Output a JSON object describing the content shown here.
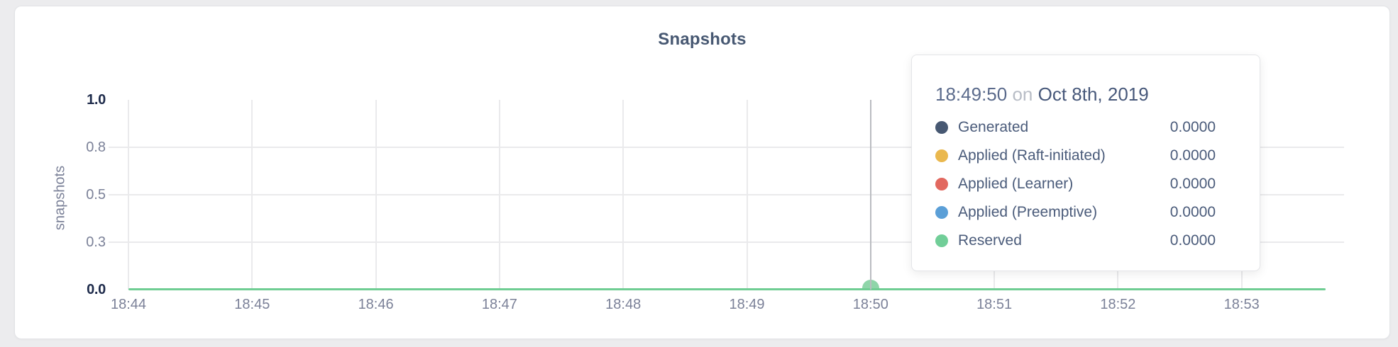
{
  "page": {
    "background": "#ececee"
  },
  "card": {
    "title": "Snapshots"
  },
  "colors": {
    "title": "#475872",
    "axis_text": "#7b8198",
    "axis_text_emphasis": "#1d2a4a",
    "gridline": "#eaeaec",
    "crosshair": "#babcc1",
    "line": "#6fcd93",
    "hover_dot": "#85d1a2"
  },
  "chart_data": {
    "type": "line",
    "title": "Snapshots",
    "xlabel": "",
    "ylabel": "snapshots",
    "ylim": [
      0,
      1
    ],
    "xlim": [
      "18:44:00",
      "18:53:45"
    ],
    "grid": true,
    "legend_position": "tooltip-only",
    "x_ticks": [
      "18:44",
      "18:45",
      "18:46",
      "18:47",
      "18:48",
      "18:49",
      "18:50",
      "18:51",
      "18:52",
      "18:53"
    ],
    "y_ticks": [
      {
        "label": "0.0",
        "value": 0.0
      },
      {
        "label": "0.3",
        "value": 0.25
      },
      {
        "label": "0.5",
        "value": 0.5
      },
      {
        "label": "0.8",
        "value": 0.75
      },
      {
        "label": "1.0",
        "value": 1.0
      }
    ],
    "series": [
      {
        "name": "Generated",
        "color": "#475872",
        "values": [
          0,
          0,
          0,
          0,
          0,
          0,
          0,
          0,
          0,
          0
        ]
      },
      {
        "name": "Applied (Raft-initiated)",
        "color": "#eab84e",
        "values": [
          0,
          0,
          0,
          0,
          0,
          0,
          0,
          0,
          0,
          0
        ]
      },
      {
        "name": "Applied (Learner)",
        "color": "#e2685f",
        "values": [
          0,
          0,
          0,
          0,
          0,
          0,
          0,
          0,
          0,
          0
        ]
      },
      {
        "name": "Applied (Preemptive)",
        "color": "#5b9fd7",
        "values": [
          0,
          0,
          0,
          0,
          0,
          0,
          0,
          0,
          0,
          0
        ]
      },
      {
        "name": "Reserved",
        "color": "#71ce98",
        "values": [
          0,
          0,
          0,
          0,
          0,
          0,
          0,
          0,
          0,
          0
        ]
      }
    ]
  },
  "tooltip": {
    "time": "18:49:50",
    "conjunction": "on",
    "date": "Oct 8th, 2019",
    "hover_x_tick": "18:50",
    "rows": [
      {
        "name": "Generated",
        "color": "#475872",
        "value": "0.0000"
      },
      {
        "name": "Applied (Raft-initiated)",
        "color": "#eab84e",
        "value": "0.0000"
      },
      {
        "name": "Applied (Learner)",
        "color": "#e2685f",
        "value": "0.0000"
      },
      {
        "name": "Applied (Preemptive)",
        "color": "#5b9fd7",
        "value": "0.0000"
      },
      {
        "name": "Reserved",
        "color": "#71ce98",
        "value": "0.0000"
      }
    ]
  }
}
